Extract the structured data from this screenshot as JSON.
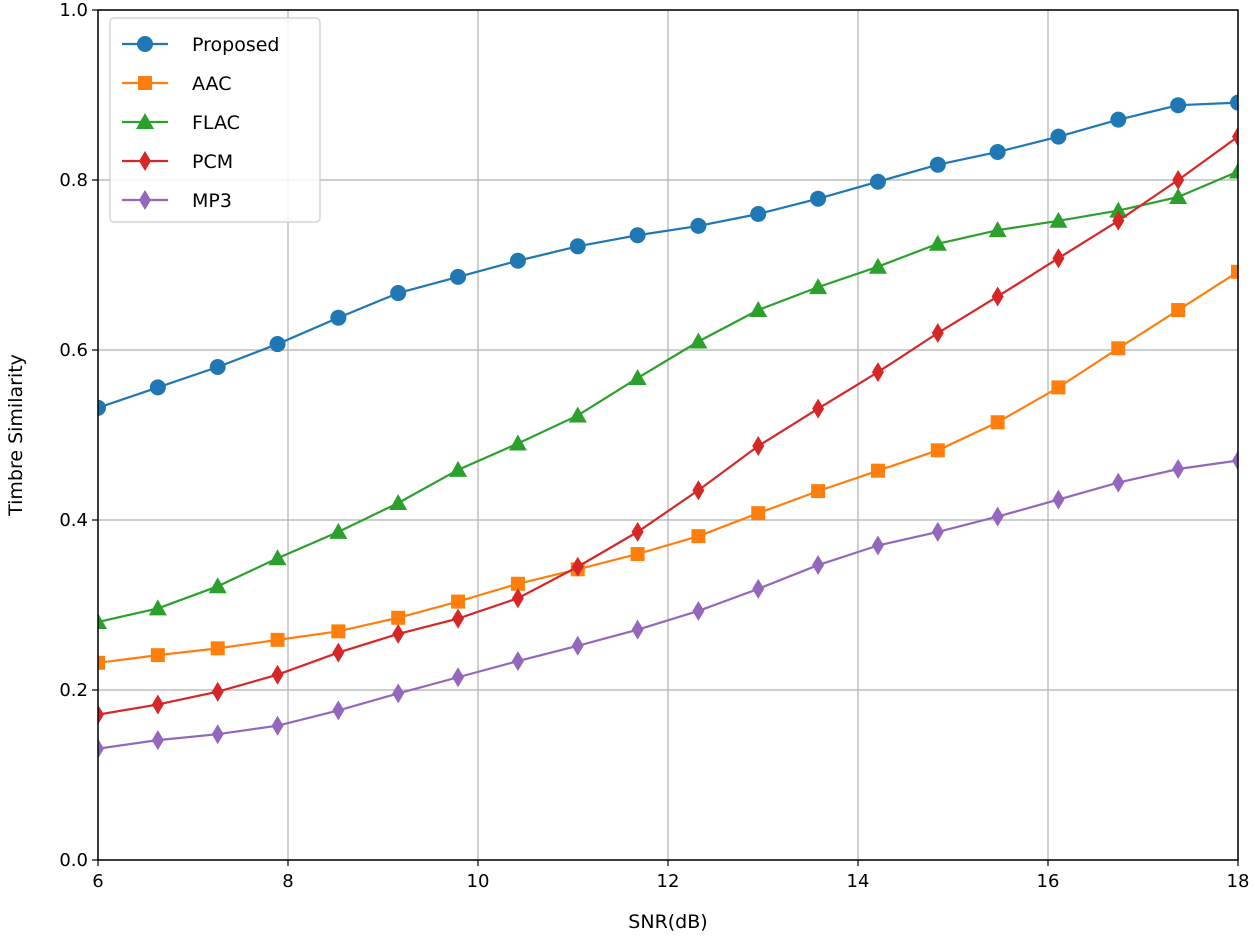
{
  "chart_data": {
    "type": "line",
    "title": "",
    "xlabel": "SNR(dB)",
    "ylabel": "Timbre Similarity",
    "xlim": [
      6,
      18
    ],
    "ylim": [
      0,
      1.0
    ],
    "grid": true,
    "legend_position": "top-left",
    "xticks": [
      6,
      8,
      10,
      12,
      14,
      16,
      18
    ],
    "xtick_labels": [
      "6",
      "8",
      "10",
      "12",
      "14",
      "16",
      "18"
    ],
    "yticks": [
      0,
      0.2,
      0.4,
      0.6,
      0.8,
      1.0
    ],
    "ytick_labels": [
      "0.0",
      "0.2",
      "0.4",
      "0.6",
      "0.8",
      "1.0"
    ],
    "x": [
      6,
      6.63,
      7.26,
      7.89,
      8.53,
      9.16,
      9.79,
      10.42,
      11.05,
      11.68,
      12.32,
      12.95,
      13.58,
      14.21,
      14.84,
      15.47,
      16.11,
      16.74,
      17.37,
      18
    ],
    "series": [
      {
        "name": "Proposed",
        "color": "#1f77b4",
        "marker": "circle",
        "values": [
          0.532,
          0.556,
          0.58,
          0.607,
          0.638,
          0.667,
          0.686,
          0.705,
          0.722,
          0.735,
          0.746,
          0.76,
          0.778,
          0.798,
          0.818,
          0.833,
          0.851,
          0.871,
          0.888,
          0.891
        ]
      },
      {
        "name": "AAC",
        "color": "#ff7f0e",
        "marker": "square",
        "values": [
          0.232,
          0.241,
          0.249,
          0.259,
          0.269,
          0.285,
          0.304,
          0.325,
          0.342,
          0.36,
          0.381,
          0.408,
          0.434,
          0.458,
          0.482,
          0.515,
          0.556,
          0.602,
          0.647,
          0.692
        ]
      },
      {
        "name": "FLAC",
        "color": "#2ca02c",
        "marker": "triangle",
        "values": [
          0.28,
          0.296,
          0.322,
          0.355,
          0.386,
          0.42,
          0.459,
          0.49,
          0.523,
          0.567,
          0.61,
          0.647,
          0.674,
          0.698,
          0.725,
          0.741,
          0.752,
          0.764,
          0.78,
          0.81
        ]
      },
      {
        "name": "PCM",
        "color": "#d62728",
        "marker": "thin-diamond",
        "values": [
          0.171,
          0.183,
          0.198,
          0.218,
          0.244,
          0.266,
          0.284,
          0.308,
          0.345,
          0.386,
          0.435,
          0.487,
          0.531,
          0.574,
          0.62,
          0.663,
          0.708,
          0.752,
          0.8,
          0.851
        ]
      },
      {
        "name": "MP3",
        "color": "#9467bd",
        "marker": "thin-diamond",
        "values": [
          0.131,
          0.141,
          0.148,
          0.158,
          0.176,
          0.196,
          0.215,
          0.234,
          0.252,
          0.271,
          0.293,
          0.319,
          0.347,
          0.37,
          0.386,
          0.404,
          0.424,
          0.444,
          0.46,
          0.47
        ]
      }
    ]
  }
}
